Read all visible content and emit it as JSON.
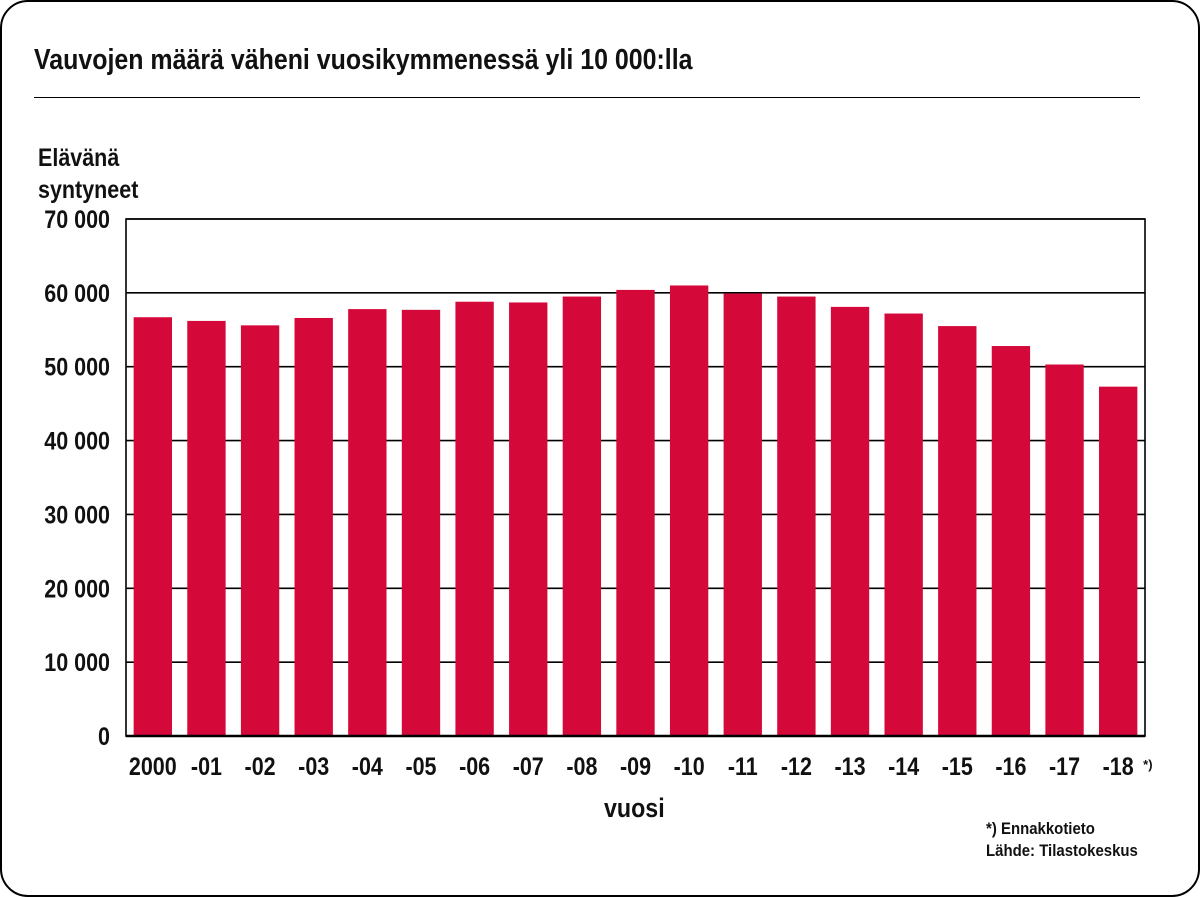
{
  "title": "Vauvojen määrä väheni vuosikymmenessä yli 10 000:lla",
  "chart_data": {
    "type": "bar",
    "title": "Vauvojen määrä väheni vuosikymmenessä yli 10 000:lla",
    "ylabel_lines": [
      "Elävänä",
      "syntyneet"
    ],
    "xlabel": "vuosi",
    "categories": [
      "2000",
      "-01",
      "-02",
      "-03",
      "-04",
      "-05",
      "-06",
      "-07",
      "-08",
      "-09",
      "-10",
      "-11",
      "-12",
      "-13",
      "-14",
      "-15",
      "-16",
      "-17",
      "-18"
    ],
    "category_footnote": {
      "index": 18,
      "mark": "*)"
    },
    "values": [
      56700,
      56200,
      55600,
      56600,
      57800,
      57700,
      58800,
      58700,
      59500,
      60400,
      61000,
      59900,
      59500,
      58100,
      57200,
      55500,
      52800,
      50300,
      47300
    ],
    "ylim": [
      0,
      70000
    ],
    "yticks": [
      0,
      10000,
      20000,
      30000,
      40000,
      50000,
      60000,
      70000
    ],
    "ytick_labels": [
      "0",
      "10 000",
      "20 000",
      "30 000",
      "40 000",
      "50 000",
      "60 000",
      "70 000"
    ],
    "grid": true,
    "bar_color": "#d5083a",
    "notes": [
      "*) Ennakkotieto",
      "Lähde: Tilastokeskus"
    ]
  }
}
